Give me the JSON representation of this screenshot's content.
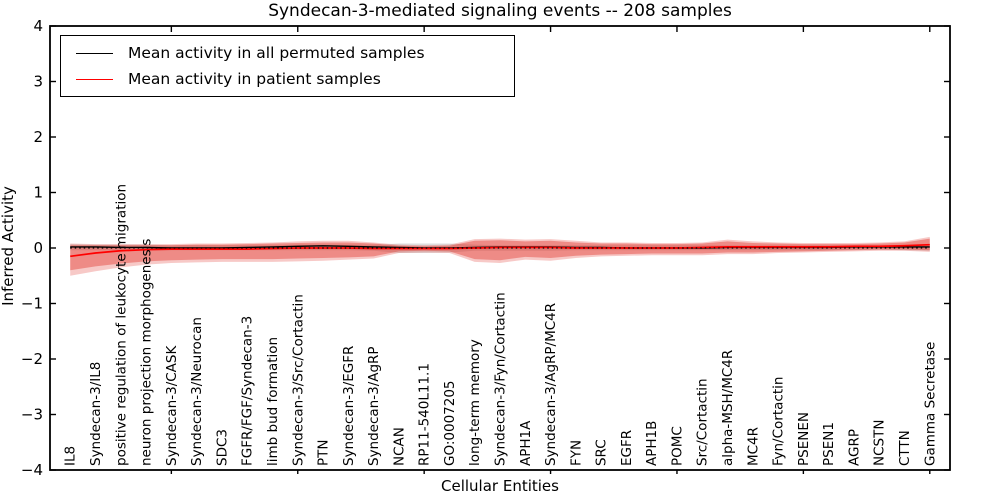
{
  "chart_data": {
    "type": "line",
    "title": "Syndecan-3-mediated signaling events -- 208 samples",
    "xlabel": "Cellular Entities",
    "ylabel": "Inferred Activity",
    "ylim": [
      -4,
      4
    ],
    "ytick_values": [
      4,
      3,
      2,
      1,
      0,
      -1,
      -2,
      -3,
      -4
    ],
    "ytick_labels": [
      "4",
      "3",
      "2",
      "1",
      "0",
      "−1",
      "−2",
      "−3",
      "−4"
    ],
    "xtick_positions": [
      5,
      10,
      15,
      20,
      25,
      30,
      35
    ],
    "grid": false,
    "legend_position": "upper-left",
    "zero_line": 0,
    "categories": [
      "IL8",
      "Syndecan-3/IL8",
      "positive regulation of leukocyte migration",
      "neuron projection morphogenesis",
      "Syndecan-3/CASK",
      "Syndecan-3/Neurocan",
      "SDC3",
      "FGFR/FGF/Syndecan-3",
      "limb bud formation",
      "Syndecan-3/Src/Cortactin",
      "PTN",
      "Syndecan-3/EGFR",
      "Syndecan-3/AgRP",
      "NCAN",
      "RP11-540L11.1",
      "GO:0007205",
      "long-term memory",
      "Syndecan-3/Fyn/Cortactin",
      "APH1A",
      "Syndecan-3/AgRP/MC4R",
      "FYN",
      "SRC",
      "EGFR",
      "APH1B",
      "POMC",
      "Src/Cortactin",
      "alpha-MSH/MC4R",
      "MC4R",
      "Fyn/Cortactin",
      "PSENEN",
      "PSEN1",
      "AGRP",
      "NCSTN",
      "CTTN",
      "Gamma Secretase"
    ],
    "series": [
      {
        "name": "Mean activity in all permuted samples",
        "color": "#000000",
        "values": [
          0.02,
          0.02,
          0.01,
          0.01,
          0.0,
          0.0,
          0.0,
          0.01,
          0.02,
          0.03,
          0.04,
          0.03,
          0.02,
          0.01,
          0.0,
          0.0,
          0.01,
          0.02,
          0.02,
          0.02,
          0.01,
          0.01,
          0.0,
          0.0,
          0.0,
          0.0,
          0.01,
          0.01,
          0.01,
          0.01,
          0.01,
          0.02,
          0.02,
          0.02,
          0.02
        ]
      },
      {
        "name": "Mean activity in patient samples",
        "color": "#ff0000",
        "values": [
          -0.15,
          -0.09,
          -0.05,
          -0.03,
          -0.02,
          -0.02,
          -0.02,
          -0.02,
          -0.01,
          0.0,
          0.0,
          0.0,
          -0.01,
          -0.01,
          -0.01,
          -0.01,
          0.0,
          0.01,
          0.01,
          0.01,
          0.0,
          0.0,
          0.0,
          0.0,
          0.0,
          0.01,
          0.02,
          0.02,
          0.02,
          0.02,
          0.02,
          0.03,
          0.03,
          0.04,
          0.06
        ]
      }
    ],
    "bands": [
      {
        "name": "permuted-samples-range",
        "color": "#000000",
        "opacity": 0.13,
        "hi": [
          0.07,
          0.06,
          0.06,
          0.06,
          0.05,
          0.05,
          0.05,
          0.05,
          0.05,
          0.06,
          0.06,
          0.06,
          0.06,
          0.08,
          0.08,
          0.08,
          0.06,
          0.05,
          0.05,
          0.05,
          0.05,
          0.05,
          0.05,
          0.05,
          0.05,
          0.05,
          0.05,
          0.05,
          0.05,
          0.05,
          0.05,
          0.05,
          0.05,
          0.06,
          0.07
        ],
        "lo": [
          -0.04,
          -0.04,
          -0.04,
          -0.04,
          -0.04,
          -0.04,
          -0.04,
          -0.04,
          -0.04,
          -0.04,
          -0.04,
          -0.04,
          -0.05,
          -0.09,
          -0.09,
          -0.08,
          -0.05,
          -0.05,
          -0.05,
          -0.05,
          -0.04,
          -0.04,
          -0.04,
          -0.04,
          -0.04,
          -0.04,
          -0.04,
          -0.04,
          -0.04,
          -0.04,
          -0.04,
          -0.03,
          -0.03,
          -0.04,
          -0.05
        ]
      },
      {
        "name": "patient-samples-range-outer",
        "color": "#e0281e",
        "opacity": 0.25,
        "hi": [
          0.08,
          0.07,
          0.07,
          0.07,
          0.07,
          0.08,
          0.08,
          0.09,
          0.1,
          0.12,
          0.13,
          0.13,
          0.1,
          0.06,
          0.05,
          0.06,
          0.16,
          0.17,
          0.15,
          0.16,
          0.13,
          0.1,
          0.1,
          0.09,
          0.09,
          0.1,
          0.15,
          0.12,
          0.1,
          0.09,
          0.09,
          0.09,
          0.1,
          0.12,
          0.2
        ],
        "lo": [
          -0.5,
          -0.42,
          -0.35,
          -0.3,
          -0.27,
          -0.26,
          -0.25,
          -0.25,
          -0.25,
          -0.24,
          -0.23,
          -0.21,
          -0.19,
          -0.09,
          -0.08,
          -0.09,
          -0.25,
          -0.27,
          -0.21,
          -0.23,
          -0.18,
          -0.15,
          -0.14,
          -0.13,
          -0.13,
          -0.13,
          -0.11,
          -0.11,
          -0.09,
          -0.08,
          -0.07,
          -0.06,
          -0.05,
          -0.05,
          -0.07
        ]
      },
      {
        "name": "patient-samples-range-inner",
        "color": "#e0281e",
        "opacity": 0.38,
        "hi": [
          0.05,
          0.05,
          0.05,
          0.05,
          0.05,
          0.06,
          0.06,
          0.07,
          0.08,
          0.09,
          0.1,
          0.1,
          0.08,
          0.04,
          0.03,
          0.04,
          0.13,
          0.14,
          0.12,
          0.13,
          0.1,
          0.08,
          0.08,
          0.07,
          0.07,
          0.08,
          0.12,
          0.09,
          0.08,
          0.07,
          0.07,
          0.07,
          0.08,
          0.1,
          0.17
        ],
        "lo": [
          -0.4,
          -0.33,
          -0.28,
          -0.24,
          -0.22,
          -0.21,
          -0.2,
          -0.2,
          -0.2,
          -0.19,
          -0.18,
          -0.17,
          -0.15,
          -0.06,
          -0.05,
          -0.06,
          -0.2,
          -0.22,
          -0.16,
          -0.18,
          -0.14,
          -0.12,
          -0.11,
          -0.1,
          -0.1,
          -0.1,
          -0.08,
          -0.08,
          -0.07,
          -0.06,
          -0.05,
          -0.04,
          -0.03,
          -0.03,
          -0.04
        ]
      }
    ]
  }
}
